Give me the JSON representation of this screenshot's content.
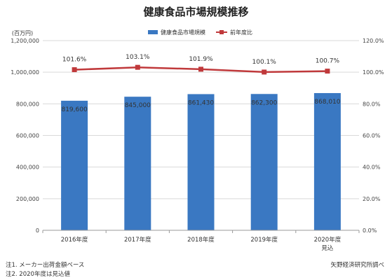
{
  "chart_data": {
    "type": "bar",
    "title": "健康食品市場規模推移",
    "y_unit": "(百万円)",
    "categories": [
      "2016年度",
      "2017年度",
      "2018年度",
      "2019年度",
      "2020年度"
    ],
    "category_sublabels": [
      "",
      "",
      "",
      "",
      "見込"
    ],
    "ylim": [
      0,
      1200000
    ],
    "y_ticks": [
      "0",
      "200,000",
      "400,000",
      "600,000",
      "800,000",
      "1,000,000",
      "1,200,000"
    ],
    "y2lim": [
      0,
      120
    ],
    "y2_ticks": [
      "0.0%",
      "20.0%",
      "40.0%",
      "60.0%",
      "80.0%",
      "100.0%",
      "120.0%"
    ],
    "grid": true,
    "legend_position": "top",
    "series": [
      {
        "name": "健康食品市場規模",
        "type": "bar",
        "axis": "primary",
        "color": "#3A78C2",
        "values": [
          819600,
          845000,
          861430,
          862300,
          868010
        ],
        "labels": [
          "819,600",
          "845,000",
          "861,430",
          "862,300",
          "868,010"
        ]
      },
      {
        "name": "前年度比",
        "type": "line",
        "axis": "secondary",
        "color": "#C0393B",
        "values": [
          101.6,
          103.1,
          101.9,
          100.1,
          100.7
        ],
        "labels": [
          "101.6%",
          "103.1%",
          "101.9%",
          "100.1%",
          "100.7%"
        ]
      }
    ]
  },
  "notes": {
    "note1": "注1. メーカー出荷金額ベース",
    "note2": "注2. 2020年度は見込値",
    "source": "矢野経済研究所調べ"
  }
}
